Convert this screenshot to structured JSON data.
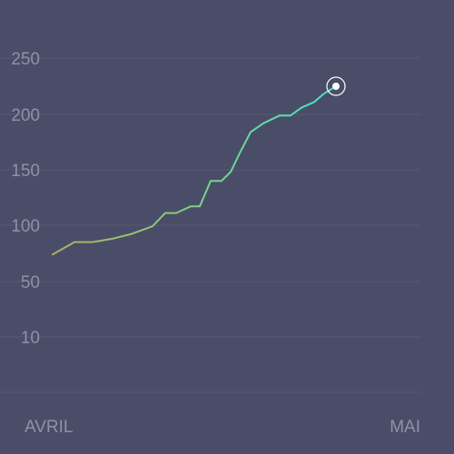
{
  "chart_data": {
    "type": "line",
    "title": "",
    "xlabel": "",
    "ylabel": "",
    "x_tick_labels": [
      "AVRIL",
      "MAI"
    ],
    "y_tick_labels": [
      "10",
      "50",
      "100",
      "150",
      "200",
      "250"
    ],
    "y_tick_values": [
      10,
      50,
      100,
      150,
      200,
      250
    ],
    "grid": true,
    "legend": "none",
    "series": [
      {
        "x": [
          1,
          2.2,
          3.2,
          4.3,
          5.3,
          6.5,
          7.2,
          7.8,
          8.6,
          9.1,
          9.7,
          10.3,
          10.8,
          11.3,
          11.9,
          12.6,
          13.5,
          14.1,
          14.7,
          15.4,
          15.9,
          16.6
        ],
        "values": [
          74,
          85,
          85,
          88,
          92,
          99,
          111,
          111,
          117,
          117,
          140,
          140,
          148,
          165,
          184,
          192,
          199,
          199,
          206,
          211,
          218,
          225
        ]
      }
    ],
    "highlight_index": 21,
    "colors": {
      "background": "#4a4d68",
      "grid": "#555873",
      "tick_text": "#8e91a6",
      "line_start": "#b5ac62",
      "line_mid": "#7fcf86",
      "line_end": "#3fe8c4",
      "marker_fill": "#ffffff"
    }
  }
}
